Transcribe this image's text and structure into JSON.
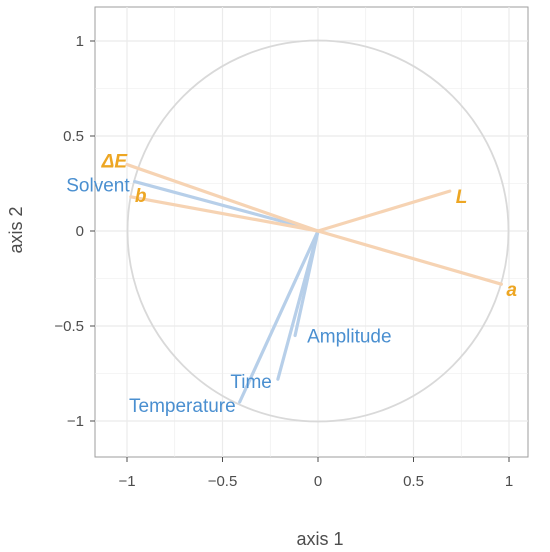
{
  "chart_data": {
    "type": "scatter",
    "subtype": "pca-correlation-circle",
    "xlabel": "axis 1",
    "ylabel": "axis 2",
    "xlim": [
      -1.2,
      1.2
    ],
    "ylim": [
      -1.2,
      1.2
    ],
    "xticks": [
      -1,
      -0.5,
      0,
      0.5,
      1
    ],
    "xtick_labels": [
      "−1",
      "−0.5",
      "0",
      "0.5",
      "1"
    ],
    "yticks": [
      1,
      0.5,
      0,
      -0.5,
      -1
    ],
    "ytick_labels": [
      "1",
      "0.5",
      "0",
      "−0.5",
      "−1"
    ],
    "grid": true,
    "unit_circle": true,
    "colors": {
      "blue_line": "#b7cfe9",
      "blue_text": "#4a8fd0",
      "orange_line": "#f6d3b3",
      "orange_text": "#eda623",
      "circle": "#d9d9d9",
      "grid": "#ebebeb",
      "frame": "#9e9e9e"
    },
    "vectors": [
      {
        "label": "Solvent",
        "group": "blue",
        "x": -0.96,
        "y": 0.26
      },
      {
        "label": "Amplitude",
        "group": "blue",
        "x": -0.12,
        "y": -0.55
      },
      {
        "label": "Time",
        "group": "blue",
        "x": -0.21,
        "y": -0.78
      },
      {
        "label": "Temperature",
        "group": "blue",
        "x": -0.41,
        "y": -0.9
      },
      {
        "label": "ΔE",
        "group": "orange",
        "x": -1.0,
        "y": 0.35
      },
      {
        "label": "b",
        "group": "orange",
        "x": -0.98,
        "y": 0.18
      },
      {
        "label": "L",
        "group": "orange",
        "x": 0.69,
        "y": 0.21
      },
      {
        "label": "a",
        "group": "orange",
        "x": 0.96,
        "y": -0.28
      }
    ]
  }
}
